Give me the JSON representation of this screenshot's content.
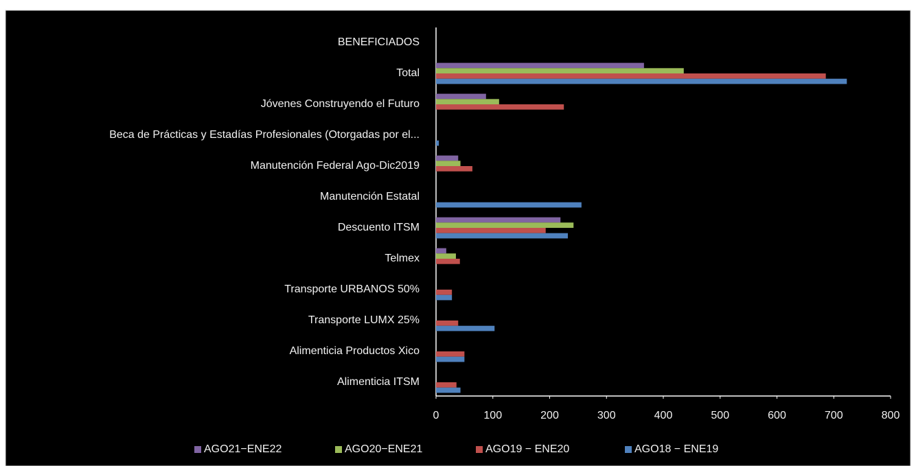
{
  "chart_data": {
    "type": "barh",
    "categories": [
      "BENEFICIADOS",
      "Total",
      "Jóvenes Construyendo el Futuro",
      "Beca de Prácticas y Estadías Profesionales (Otorgadas por el...",
      "Manutención Federal Ago-Dic2019",
      "Manutención Estatal",
      "Descuento ITSM",
      "Telmex",
      "Transporte URBANOS 50%",
      "Transporte LUMX 25%",
      "Alimenticia Productos Xico",
      "Alimenticia ITSM"
    ],
    "series": [
      {
        "name": "AGO21−ENE22",
        "color": "#8064a2",
        "values": [
          null,
          366,
          88,
          null,
          39,
          null,
          219,
          18,
          null,
          null,
          null,
          null
        ]
      },
      {
        "name": "AGO20−ENE21",
        "color": "#9bbb59",
        "values": [
          null,
          436,
          111,
          null,
          43,
          null,
          242,
          35,
          null,
          null,
          null,
          null
        ]
      },
      {
        "name": "AGO19 − ENE20",
        "color": "#c0504d",
        "values": [
          null,
          686,
          225,
          null,
          64,
          null,
          193,
          42,
          28,
          39,
          50,
          36
        ]
      },
      {
        "name": "AGO18 − ENE19",
        "color": "#4f81bd",
        "values": [
          null,
          723,
          null,
          5,
          null,
          256,
          232,
          null,
          28,
          103,
          50,
          43
        ]
      }
    ],
    "xlim": [
      0,
      800
    ],
    "xticks": [
      0,
      100,
      200,
      300,
      400,
      500,
      600,
      700,
      800
    ],
    "legend": "bottom"
  }
}
